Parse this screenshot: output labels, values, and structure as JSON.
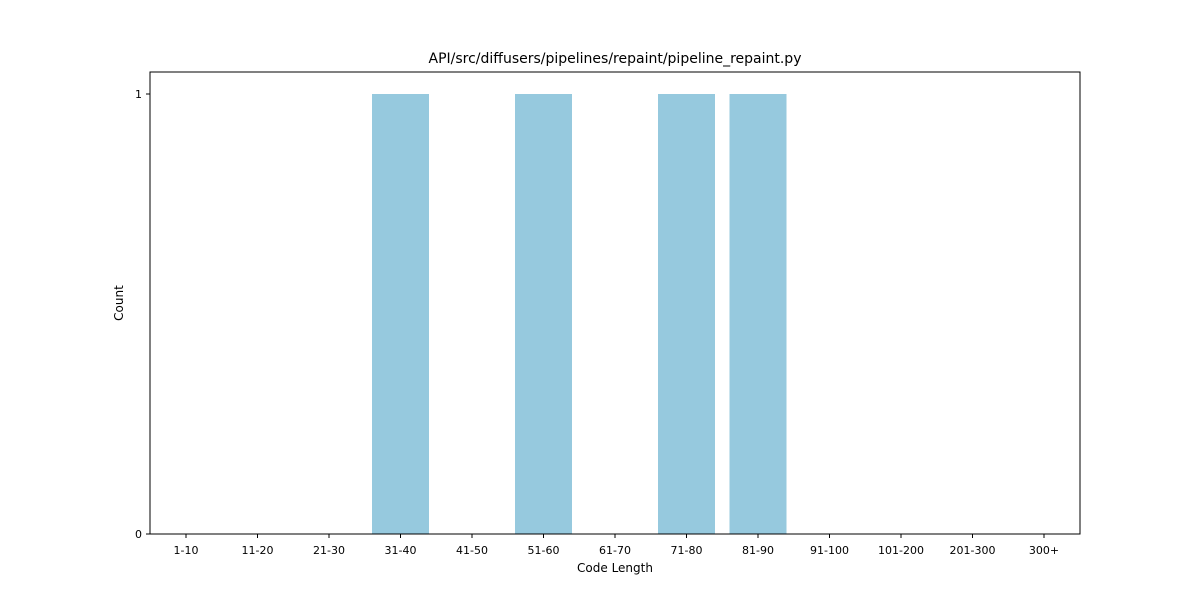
{
  "chart_data": {
    "type": "bar",
    "title": "API/src/diffusers/pipelines/repaint/pipeline_repaint.py",
    "xlabel": "Code Length",
    "ylabel": "Count",
    "categories": [
      "1-10",
      "11-20",
      "21-30",
      "31-40",
      "41-50",
      "51-60",
      "61-70",
      "71-80",
      "81-90",
      "91-100",
      "101-200",
      "201-300",
      "300+"
    ],
    "values": [
      0,
      0,
      0,
      1,
      0,
      1,
      0,
      1,
      1,
      0,
      0,
      0,
      0
    ],
    "ylim": [
      0,
      1.05
    ],
    "yticks": [
      "0",
      "1"
    ],
    "bar_color": "#96c9de",
    "grid": false
  }
}
